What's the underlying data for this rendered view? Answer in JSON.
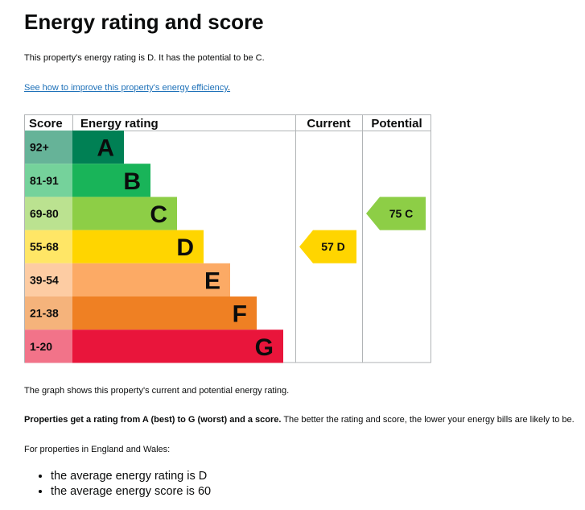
{
  "page": {
    "title": "Energy rating and score",
    "intro": "This property's energy rating is D. It has the potential to be C.",
    "link_text": "See how to improve this property's energy efficiency",
    "link_suffix": ".",
    "graph_caption": "The graph shows this property's current and potential energy rating.",
    "rating_explainer_bold": "Properties get a rating from A (best) to G (worst) and a score.",
    "rating_explainer_rest": " The better the rating and score, the lower your energy bills are likely to be.",
    "region_note": "For properties in England and Wales:",
    "averages": [
      "the average energy rating is D",
      "the average energy score is 60"
    ]
  },
  "chart_data": {
    "type": "table",
    "headers": {
      "score": "Score",
      "rating": "Energy rating",
      "current": "Current",
      "potential": "Potential"
    },
    "bands": [
      {
        "score": "92+",
        "letter": "A",
        "color": "#008054",
        "score_color": "#66b398"
      },
      {
        "score": "81-91",
        "letter": "B",
        "color": "#19b459",
        "score_color": "#75d29b"
      },
      {
        "score": "69-80",
        "letter": "C",
        "color": "#8dce46",
        "score_color": "#bbe290"
      },
      {
        "score": "55-68",
        "letter": "D",
        "color": "#ffd500",
        "score_color": "#ffe666"
      },
      {
        "score": "39-54",
        "letter": "E",
        "color": "#fcaa65",
        "score_color": "#fdcca3"
      },
      {
        "score": "21-38",
        "letter": "F",
        "color": "#ef8023",
        "score_color": "#f5b37b"
      },
      {
        "score": "1-20",
        "letter": "G",
        "color": "#e9153b",
        "score_color": "#f27389"
      }
    ],
    "current": {
      "score": 57,
      "letter": "D",
      "color": "#ffd500"
    },
    "potential": {
      "score": 75,
      "letter": "C",
      "color": "#8dce46"
    }
  }
}
